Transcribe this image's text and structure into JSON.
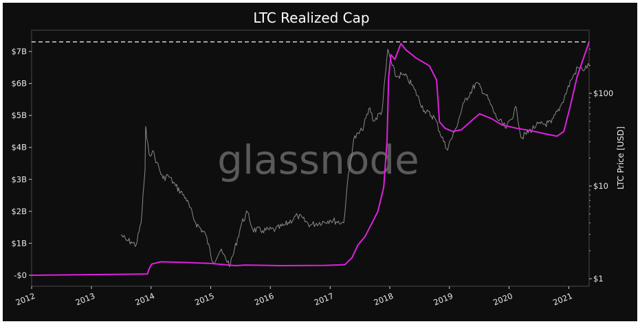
{
  "chart_data": {
    "type": "line",
    "title": "LTC Realized Cap",
    "watermark": "glassnode",
    "xlabel": "",
    "x_ticks": [
      "2012",
      "2013",
      "2014",
      "2015",
      "2016",
      "2017",
      "2018",
      "2019",
      "2020",
      "2021"
    ],
    "y_left": {
      "label": "",
      "ticks": [
        "-$0",
        "$1B",
        "$2B",
        "$3B",
        "$4B",
        "$5B",
        "$6B",
        "$7B"
      ],
      "ylim": [
        0,
        7.7
      ],
      "unit": "billion USD"
    },
    "y_right": {
      "label": "LTC Price [USD]",
      "ticks": [
        "$1",
        "$10",
        "$100"
      ],
      "scale": "log",
      "ylim": [
        0.9,
        320
      ]
    },
    "reference_line": {
      "value": 7.3,
      "style": "dashed",
      "color": "#ffffff"
    },
    "series": [
      {
        "axis": "left",
        "color": "#e020e0",
        "points": [
          [
            "2012-01-01",
            0.0
          ],
          [
            "2013-01-01",
            0.02
          ],
          [
            "2013-12-10",
            0.04
          ],
          [
            "2013-12-20",
            0.2
          ],
          [
            "2014-01-05",
            0.35
          ],
          [
            "2014-03-01",
            0.42
          ],
          [
            "2014-08-01",
            0.4
          ],
          [
            "2015-01-01",
            0.37
          ],
          [
            "2015-06-01",
            0.3
          ],
          [
            "2015-08-01",
            0.32
          ],
          [
            "2016-03-01",
            0.3
          ],
          [
            "2016-12-01",
            0.31
          ],
          [
            "2017-04-01",
            0.33
          ],
          [
            "2017-05-15",
            0.55
          ],
          [
            "2017-06-20",
            0.95
          ],
          [
            "2017-08-01",
            1.2
          ],
          [
            "2017-09-01",
            1.5
          ],
          [
            "2017-10-20",
            2.0
          ],
          [
            "2017-11-25",
            2.75
          ],
          [
            "2017-12-15",
            4.2
          ],
          [
            "2017-12-25",
            6.2
          ],
          [
            "2018-01-08",
            6.9
          ],
          [
            "2018-02-01",
            6.75
          ],
          [
            "2018-03-10",
            7.25
          ],
          [
            "2018-04-10",
            7.05
          ],
          [
            "2018-06-10",
            6.8
          ],
          [
            "2018-09-01",
            6.55
          ],
          [
            "2018-10-15",
            6.1
          ],
          [
            "2018-11-01",
            4.8
          ],
          [
            "2018-12-05",
            4.6
          ],
          [
            "2019-01-20",
            4.5
          ],
          [
            "2019-03-15",
            4.55
          ],
          [
            "2019-05-20",
            4.85
          ],
          [
            "2019-07-05",
            5.05
          ],
          [
            "2019-09-15",
            4.9
          ],
          [
            "2019-11-20",
            4.7
          ],
          [
            "2020-02-15",
            4.6
          ],
          [
            "2020-05-15",
            4.52
          ],
          [
            "2020-09-01",
            4.4
          ],
          [
            "2020-10-20",
            4.35
          ],
          [
            "2020-12-01",
            4.5
          ],
          [
            "2021-01-10",
            5.3
          ],
          [
            "2021-02-20",
            6.2
          ],
          [
            "2021-03-25",
            6.7
          ],
          [
            "2021-05-05",
            7.3
          ]
        ]
      },
      {
        "axis": "right",
        "color": "#8a8a8a",
        "points": [
          [
            "2013-07-01",
            3.0
          ],
          [
            "2013-08-01",
            2.6
          ],
          [
            "2013-09-01",
            2.5
          ],
          [
            "2013-10-01",
            2.3
          ],
          [
            "2013-11-01",
            4.0
          ],
          [
            "2013-11-25",
            15.0
          ],
          [
            "2013-11-29",
            44.0
          ],
          [
            "2013-12-05",
            33.0
          ],
          [
            "2013-12-20",
            22.0
          ],
          [
            "2014-01-10",
            24.0
          ],
          [
            "2014-02-05",
            18.0
          ],
          [
            "2014-03-15",
            12.0
          ],
          [
            "2014-04-15",
            13.0
          ],
          [
            "2014-06-01",
            10.0
          ],
          [
            "2014-08-01",
            7.5
          ],
          [
            "2014-10-01",
            4.0
          ],
          [
            "2014-12-01",
            3.0
          ],
          [
            "2015-01-15",
            1.5
          ],
          [
            "2015-03-01",
            2.0
          ],
          [
            "2015-05-01",
            1.4
          ],
          [
            "2015-07-10",
            4.0
          ],
          [
            "2015-08-15",
            5.2
          ],
          [
            "2015-09-15",
            3.4
          ],
          [
            "2015-11-15",
            3.3
          ],
          [
            "2016-02-01",
            3.4
          ],
          [
            "2016-04-01",
            3.8
          ],
          [
            "2016-06-15",
            4.8
          ],
          [
            "2016-09-01",
            3.8
          ],
          [
            "2016-12-31",
            4.3
          ],
          [
            "2017-03-25",
            4.0
          ],
          [
            "2017-04-15",
            10.0
          ],
          [
            "2017-05-25",
            32.0
          ],
          [
            "2017-07-15",
            40.0
          ],
          [
            "2017-09-01",
            70.0
          ],
          [
            "2017-09-25",
            50.0
          ],
          [
            "2017-11-15",
            65.0
          ],
          [
            "2017-12-20",
            300.0
          ],
          [
            "2018-01-15",
            200.0
          ],
          [
            "2018-02-10",
            150.0
          ],
          [
            "2018-03-15",
            160.0
          ],
          [
            "2018-04-20",
            145.0
          ],
          [
            "2018-06-01",
            110.0
          ],
          [
            "2018-08-01",
            65.0
          ],
          [
            "2018-10-01",
            55.0
          ],
          [
            "2018-12-15",
            25.0
          ],
          [
            "2019-02-01",
            38.0
          ],
          [
            "2019-04-01",
            80.0
          ],
          [
            "2019-06-15",
            130.0
          ],
          [
            "2019-08-15",
            95.0
          ],
          [
            "2019-10-15",
            55.0
          ],
          [
            "2019-12-15",
            42.0
          ],
          [
            "2020-02-15",
            70.0
          ],
          [
            "2020-03-15",
            33.0
          ],
          [
            "2020-06-15",
            45.0
          ],
          [
            "2020-09-15",
            48.0
          ],
          [
            "2020-11-15",
            75.0
          ],
          [
            "2021-01-15",
            140.0
          ],
          [
            "2021-02-25",
            190.0
          ],
          [
            "2021-03-25",
            180.0
          ],
          [
            "2021-05-05",
            200.0
          ]
        ]
      }
    ],
    "grid": false,
    "legend": "none"
  }
}
